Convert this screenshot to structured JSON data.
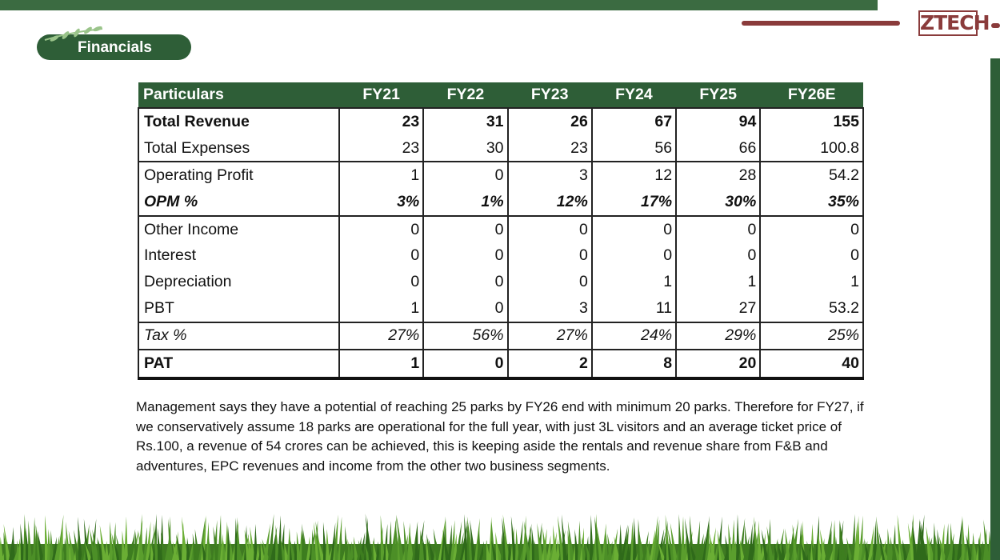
{
  "header": {
    "title": "Financials",
    "logo": "ZTECH"
  },
  "table": {
    "columns": [
      "Particulars",
      "FY21",
      "FY22",
      "FY23",
      "FY24",
      "FY25",
      "FY26E"
    ],
    "rows": [
      [
        "Total Revenue",
        "23",
        "31",
        "26",
        "67",
        "94",
        "155"
      ],
      [
        "Total Expenses",
        "23",
        "30",
        "23",
        "56",
        "66",
        "100.8"
      ],
      [
        "Operating Profit",
        "1",
        "0",
        "3",
        "12",
        "28",
        "54.2"
      ],
      [
        "OPM %",
        "3%",
        "1%",
        "12%",
        "17%",
        "30%",
        "35%"
      ],
      [
        "Other Income",
        "0",
        "0",
        "0",
        "0",
        "0",
        "0"
      ],
      [
        "Interest",
        "0",
        "0",
        "0",
        "0",
        "0",
        "0"
      ],
      [
        "Depreciation",
        "0",
        "0",
        "0",
        "1",
        "1",
        "1"
      ],
      [
        "PBT",
        "1",
        "0",
        "3",
        "11",
        "27",
        "53.2"
      ],
      [
        "Tax %",
        "27%",
        "56%",
        "27%",
        "24%",
        "29%",
        "25%"
      ],
      [
        "PAT",
        "1",
        "0",
        "2",
        "8",
        "20",
        "40"
      ]
    ]
  },
  "paragraph": "Management says they have a potential of reaching 25 parks by FY26 end with minimum 20 parks. Therefore for FY27, if we conservatively assume 18 parks are operational for the full year, with just 3L visitors and an average ticket price of Rs.100, a revenue of 54 crores can be achieved, this is keeping aside the rentals and revenue share from F&B and adventures, EPC revenues and income from the other two business segments."
}
